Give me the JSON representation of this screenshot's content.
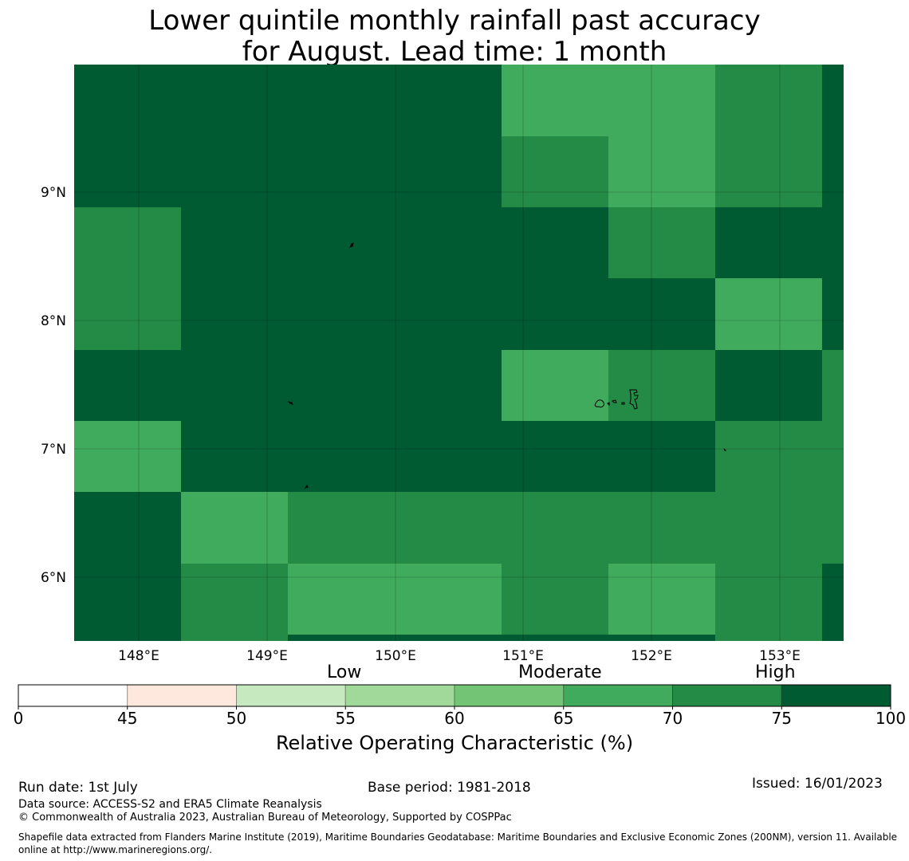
{
  "title_line1": "Lower quintile monthly rainfall past accuracy",
  "title_line2": "for August. Lead time: 1 month",
  "map": {
    "lon_labels": [
      "148°E",
      "149°E",
      "150°E",
      "151°E",
      "152°E",
      "153°E"
    ],
    "lat_labels": [
      "9°N",
      "8°N",
      "7°N",
      "6°N"
    ],
    "colors": {
      "c45_50": "#fee8dd",
      "c50_55": "#c7e9c0",
      "c55_60": "#a1d99b",
      "c60_65": "#74c476",
      "c65_70": "#41ab5d",
      "c70_75": "#238b45",
      "c75_100": "#005a32"
    },
    "grid_rows": [
      [
        "H",
        "H",
        "H",
        "H",
        "a",
        "a",
        "b",
        "H"
      ],
      [
        "H",
        "H",
        "H",
        "H",
        "b",
        "a",
        "b",
        "H"
      ],
      [
        "b",
        "H",
        "H",
        "H",
        "H",
        "b",
        "H",
        "H"
      ],
      [
        "b",
        "H",
        "H",
        "H",
        "H",
        "H",
        "a",
        "H"
      ],
      [
        "H",
        "H",
        "H",
        "H",
        "a",
        "b",
        "H",
        "b"
      ],
      [
        "a",
        "H",
        "H",
        "H",
        "H",
        "H",
        "b",
        "b"
      ],
      [
        "H",
        "a",
        "b",
        "b",
        "b",
        "b",
        "b",
        "b"
      ],
      [
        "H",
        "b",
        "a",
        "a",
        "b",
        "a",
        "b",
        "H"
      ]
    ],
    "grid_legend": {
      "H": "75-100",
      "b": "70-75",
      "a": "65-70"
    }
  },
  "colorbar": {
    "categories": [
      "Low",
      "Moderate",
      "High"
    ],
    "ticks": [
      "0",
      "45",
      "50",
      "55",
      "60",
      "65",
      "70",
      "75",
      "100"
    ],
    "label": "Relative Operating Characteristic (%)"
  },
  "footer": {
    "run_date": "Run date: 1st July",
    "base_period": "Base period: 1981-2018",
    "issued": "Issued: 16/01/2023",
    "data_source": "Data source: ACCESS-S2 and ERA5 Climate Reanalysis",
    "copyright": "© Commonwealth of Australia 2023, Australian Bureau of Meteorology, Supported by COSPPac",
    "shapefile_line1": "Shapefile data extracted from Flanders Marine Institute (2019), Maritime Boundaries Geodatabase: Maritime Boundaries and Exclusive Economic Zones (200NM), version 11. Available",
    "shapefile_line2": "online at http://www.marineregions.org/."
  }
}
